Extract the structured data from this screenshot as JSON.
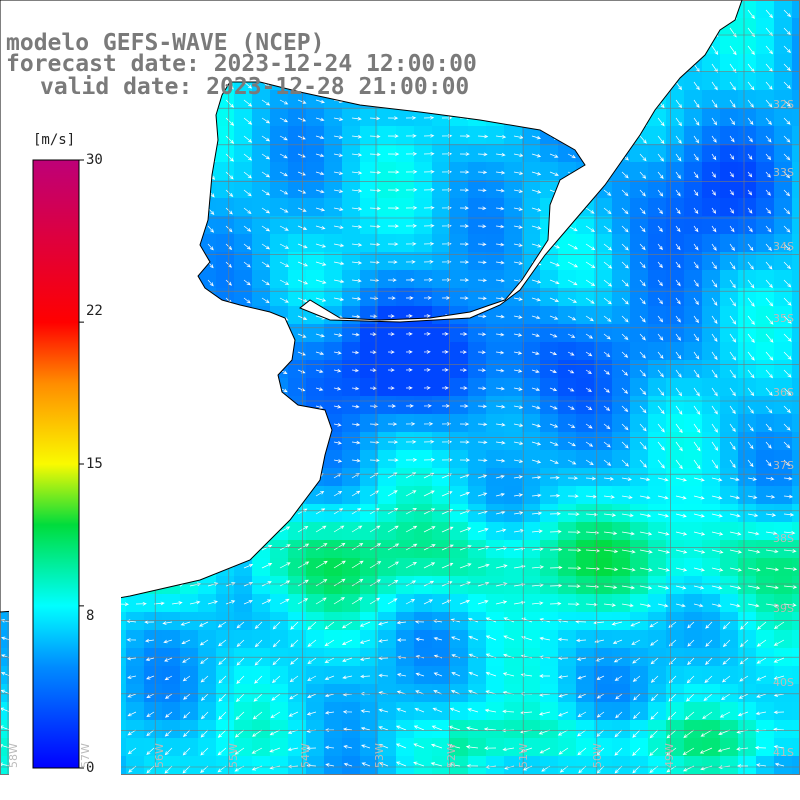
{
  "title": {
    "model": "modelo GEFS-WAVE (NCEP)",
    "forecast": "forecast date: 2023-12-24 12:00:00",
    "valid": "valid date: 2023-12-28 21:00:00"
  },
  "colorbar": {
    "unit": "[m/s]",
    "ticks": [
      "30",
      "22",
      "15",
      "8",
      "0"
    ],
    "tick_values": [
      30,
      22,
      15,
      8,
      0
    ],
    "range": [
      0,
      30
    ]
  },
  "map_labels": {
    "lat": [
      "32S",
      "33S",
      "34S",
      "35S",
      "36S",
      "37S",
      "38S",
      "39S",
      "40S",
      "41S"
    ],
    "lon": [
      "58W",
      "57W",
      "56W",
      "55W",
      "54W",
      "53W",
      "52W",
      "51W",
      "50W",
      "49W"
    ]
  },
  "colors": {
    "land": "#ffffff",
    "grid": "#777777",
    "coast": "#000000",
    "arrow": "#ffffff",
    "title": "#7a7a7a"
  }
}
